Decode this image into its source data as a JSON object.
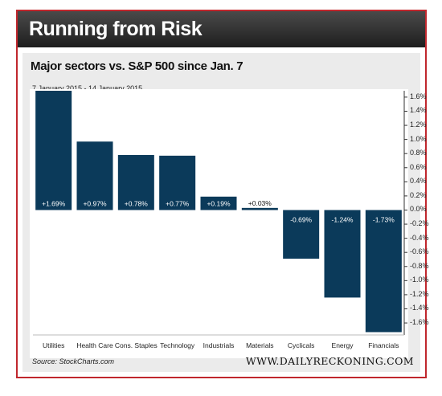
{
  "header": {
    "title": "Running from Risk",
    "subtitle": "Major sectors vs. S&P 500 since Jan. 7",
    "date_range": "7 January 2015 - 14 January 2015"
  },
  "footer": {
    "source": "Source: StockCharts.com",
    "brand": "WWW.DAILYRECKONING.COM"
  },
  "colors": {
    "bar": "#0b3a5a",
    "axis": "#333333",
    "label_text": "#ffffff"
  },
  "chart_data": {
    "type": "bar",
    "title": "Major sectors vs. S&P 500 since Jan. 7",
    "categories": [
      "Utilities",
      "Health Care",
      "Cons. Staples",
      "Technology",
      "Industrials",
      "Materials",
      "Cyclicals",
      "Energy",
      "Financials"
    ],
    "values": [
      1.69,
      0.97,
      0.78,
      0.77,
      0.19,
      0.03,
      -0.69,
      -1.24,
      -1.73
    ],
    "data_labels": [
      "+1.69%",
      "+0.97%",
      "+0.78%",
      "+0.77%",
      "+0.19%",
      "+0.03%",
      "-0.69%",
      "-1.24%",
      "-1.73%"
    ],
    "yticks": [
      "1.6%",
      "1.4%",
      "1.2%",
      "1.0%",
      "0.8%",
      "0.6%",
      "0.4%",
      "0.2%",
      "0.0%",
      "-0.2%",
      "-0.4%",
      "-0.6%",
      "-0.8%",
      "-1.0%",
      "-1.2%",
      "-1.4%",
      "-1.6%"
    ],
    "ytick_values": [
      1.6,
      1.4,
      1.2,
      1.0,
      0.8,
      0.6,
      0.4,
      0.2,
      0.0,
      -0.2,
      -0.4,
      -0.6,
      -0.8,
      -1.0,
      -1.2,
      -1.4,
      -1.6
    ],
    "ylim": [
      -1.77,
      1.69
    ],
    "y_axis_side": "right",
    "grid": false,
    "legend": "none"
  }
}
